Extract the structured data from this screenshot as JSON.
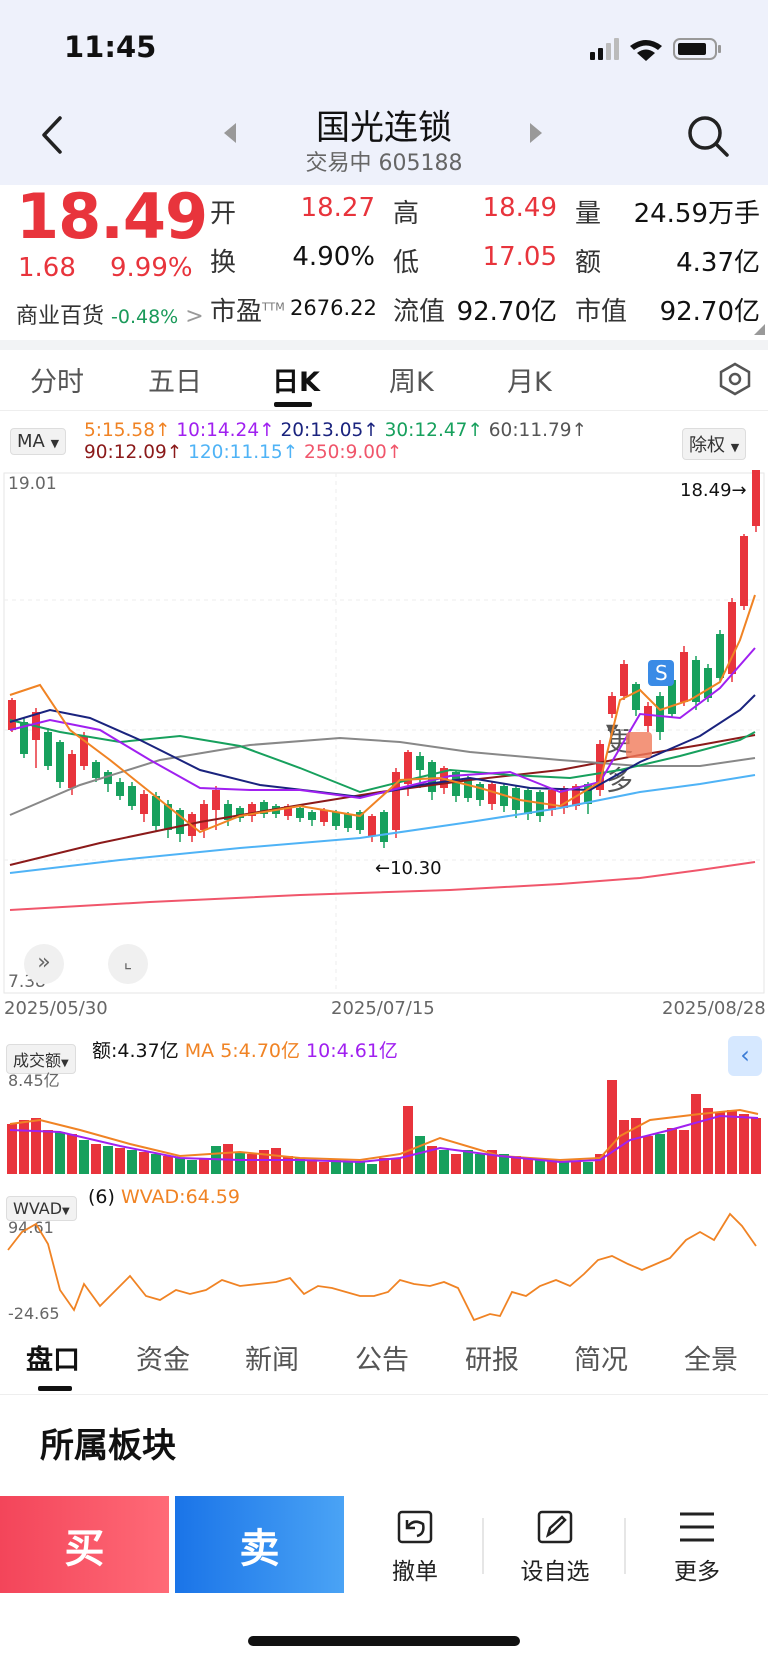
{
  "status": {
    "time": "11:45"
  },
  "header": {
    "title": "国光连锁",
    "subtitle": "交易中 605188"
  },
  "quote": {
    "price": "18.49",
    "change": "1.68",
    "pct": "9.99%",
    "sector": "商业百货",
    "sector_pct": "-0.48%",
    "sector_arrow": ">",
    "rows": [
      [
        {
          "label": "开",
          "value": "18.27",
          "color": "red"
        },
        {
          "label": "高",
          "value": "18.49",
          "color": "red"
        },
        {
          "label": "量",
          "value": "24.59万手",
          "color": "black"
        }
      ],
      [
        {
          "label": "换",
          "value": "4.90%",
          "color": "black"
        },
        {
          "label": "低",
          "value": "17.05",
          "color": "red"
        },
        {
          "label": "额",
          "value": "4.37亿",
          "color": "black"
        }
      ],
      [
        {
          "label": "市盈",
          "sup": "TTM",
          "value": "2676.22",
          "color": "black"
        },
        {
          "label": "流值",
          "value": "92.70亿",
          "color": "black"
        },
        {
          "label": "市值",
          "value": "92.70亿",
          "color": "black"
        }
      ]
    ]
  },
  "chart_tabs": [
    "分时",
    "五日",
    "日K",
    "周K",
    "月K",
    "更多"
  ],
  "chart_tabs_active": "日K",
  "ma_legend": {
    "selector": "MA",
    "items": [
      {
        "text": "5:15.58↑",
        "color": "#f08324"
      },
      {
        "text": "10:14.24↑",
        "color": "#a020f0"
      },
      {
        "text": "20:13.05↑",
        "color": "#1a237e"
      },
      {
        "text": "30:12.47↑",
        "color": "#17a05d"
      },
      {
        "text": "60:11.79↑",
        "color": "#555555"
      },
      {
        "text": "90:12.09↑",
        "color": "#8b1a1a"
      },
      {
        "text": "120:11.15↑",
        "color": "#4fb3f6"
      },
      {
        "text": "250:9.00↑",
        "color": "#f0566b"
      }
    ],
    "adjust": "除权"
  },
  "chart_data": {
    "type": "candlestick",
    "ylim": [
      7.38,
      19.01
    ],
    "y_max_label": "19.01",
    "y_min_label": "7.38",
    "x_labels": [
      "2025/05/30",
      "2025/07/15",
      "2025/08/28"
    ],
    "last_price_label": "18.49→",
    "low_annotation": "←10.30",
    "volume": {
      "selector": "成交额",
      "summary": "额:4.37亿",
      "ma5": "MA 5:4.70亿",
      "ma10": "10:4.61亿",
      "max_label": "8.45亿"
    },
    "indicator": {
      "selector": "WVAD",
      "param": "(6)",
      "value": "WVAD:64.59",
      "max_label": "94.61",
      "min_label": "-24.65"
    }
  },
  "bottom_tabs": [
    "盘口",
    "资金",
    "新闻",
    "公告",
    "研报",
    "简况",
    "全景"
  ],
  "bottom_tabs_active": "盘口",
  "section_title": "所属板块",
  "actions": {
    "buy": "买",
    "sell": "卖",
    "cancel": "撤单",
    "watch": "设自选",
    "more": "更多"
  }
}
